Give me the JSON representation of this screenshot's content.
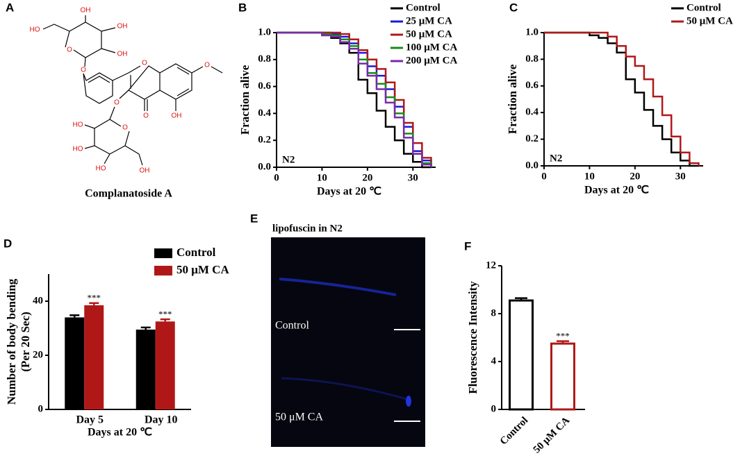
{
  "panel_labels": [
    "A",
    "B",
    "C",
    "D",
    "E",
    "F"
  ],
  "structure": {
    "name": "Complanatoside A",
    "atom_labels": [
      "OH",
      "OH",
      "OH",
      "HO",
      "O",
      "O",
      "O",
      "O",
      "O",
      "OH",
      "O",
      "O",
      "HO",
      "HO",
      "HO",
      "OH"
    ]
  },
  "image_panel": {
    "title": "lipofuscin in N2",
    "labels": [
      "Control",
      "50 μM CA"
    ]
  },
  "chart_data": [
    {
      "type": "step",
      "xlabel": "Days at 20 ℃",
      "ylabel": "Fraction alive",
      "annotation": "N2",
      "x": [
        0,
        2,
        4,
        6,
        8,
        10,
        12,
        14,
        16,
        18,
        20,
        22,
        24,
        26,
        28,
        30,
        32,
        34
      ],
      "xlim": [
        0,
        35
      ],
      "xticks": [
        0,
        10,
        20,
        30
      ],
      "ylim": [
        0,
        1
      ],
      "yticks": [
        {
          "value": 0,
          "label": "0.0"
        },
        {
          "value": 0.2,
          "label": "0.2"
        },
        {
          "value": 0.4,
          "label": "0.4"
        },
        {
          "value": 0.6,
          "label": "0.6"
        },
        {
          "value": 0.8,
          "label": "0.8"
        },
        {
          "value": 1,
          "label": "1.0"
        }
      ],
      "series": [
        {
          "name": "Control",
          "color": "#000000",
          "values": [
            1,
            1,
            1,
            1,
            1,
            0.98,
            0.96,
            0.92,
            0.85,
            0.65,
            0.55,
            0.42,
            0.3,
            0.2,
            0.1,
            0.04,
            0,
            0
          ]
        },
        {
          "name": "25 μM CA",
          "color": "#1a1adb",
          "values": [
            1,
            1,
            1,
            1,
            1,
            1,
            0.99,
            0.97,
            0.92,
            0.85,
            0.75,
            0.68,
            0.58,
            0.45,
            0.3,
            0.12,
            0.05,
            0
          ]
        },
        {
          "name": "50 μM CA",
          "color": "#b01818",
          "values": [
            1,
            1,
            1,
            1,
            1,
            1,
            1,
            0.99,
            0.95,
            0.87,
            0.8,
            0.73,
            0.63,
            0.5,
            0.33,
            0.18,
            0.07,
            0
          ]
        },
        {
          "name": "100 μM CA",
          "color": "#1a8a1a",
          "values": [
            1,
            1,
            1,
            1,
            1,
            0.99,
            0.98,
            0.95,
            0.9,
            0.8,
            0.7,
            0.62,
            0.52,
            0.4,
            0.25,
            0.1,
            0.03,
            0
          ]
        },
        {
          "name": "200 μM CA",
          "color": "#7a2aa8",
          "values": [
            1,
            1,
            1,
            1,
            1,
            0.98,
            0.97,
            0.93,
            0.88,
            0.77,
            0.68,
            0.58,
            0.48,
            0.37,
            0.22,
            0.1,
            0.02,
            0
          ]
        }
      ]
    },
    {
      "type": "step",
      "xlabel": "Days at 20 ℃",
      "ylabel": "Fraction alive",
      "annotation": "N2",
      "x": [
        0,
        2,
        4,
        6,
        8,
        10,
        12,
        14,
        16,
        18,
        20,
        22,
        24,
        26,
        28,
        30,
        32,
        34
      ],
      "xlim": [
        0,
        35
      ],
      "xticks": [
        0,
        10,
        20,
        30
      ],
      "ylim": [
        0,
        1
      ],
      "yticks": [
        {
          "value": 0,
          "label": "0.0"
        },
        {
          "value": 0.2,
          "label": "0.2"
        },
        {
          "value": 0.4,
          "label": "0.4"
        },
        {
          "value": 0.6,
          "label": "0.6"
        },
        {
          "value": 0.8,
          "label": "0.8"
        },
        {
          "value": 1,
          "label": "1.0"
        }
      ],
      "series": [
        {
          "name": "Control",
          "color": "#000000",
          "values": [
            1,
            1,
            1,
            1,
            1,
            0.98,
            0.96,
            0.92,
            0.85,
            0.65,
            0.55,
            0.42,
            0.3,
            0.2,
            0.1,
            0.04,
            0,
            0
          ]
        },
        {
          "name": "50 μM CA",
          "color": "#b01818",
          "values": [
            1,
            1,
            1,
            1,
            1,
            1,
            1,
            0.97,
            0.9,
            0.82,
            0.75,
            0.65,
            0.52,
            0.38,
            0.22,
            0.1,
            0.02,
            0
          ]
        }
      ]
    },
    {
      "type": "bar",
      "xlabel": "Days at 20 ℃",
      "ylabel": [
        "Number of body bending",
        "(Per 20 Sec)"
      ],
      "categories": [
        "Day 5",
        "Day 10"
      ],
      "ylim": [
        0,
        50
      ],
      "yticks": [
        0,
        20,
        40
      ],
      "series": [
        {
          "name": "Control",
          "color": "#000000",
          "values": [
            34,
            29.5
          ],
          "errors": [
            0.8,
            0.8
          ],
          "annotations": [
            null,
            null
          ]
        },
        {
          "name": "50 μM CA",
          "color": "#b01818",
          "values": [
            38.5,
            32.5
          ],
          "errors": [
            0.8,
            0.8
          ],
          "annotations": [
            "***",
            "***"
          ]
        }
      ]
    },
    {
      "type": "bar",
      "ylabel": "Fluorescence Intensity",
      "categories": [
        "Control",
        "50 μM CA"
      ],
      "ylim": [
        0,
        12
      ],
      "yticks": [
        0,
        4,
        8,
        12
      ],
      "values": [
        9.1,
        5.5
      ],
      "errors": [
        0.2,
        0.2
      ],
      "colors": [
        "#000000",
        "#b01818"
      ],
      "hollow": true,
      "annotations": [
        null,
        "***"
      ]
    }
  ]
}
